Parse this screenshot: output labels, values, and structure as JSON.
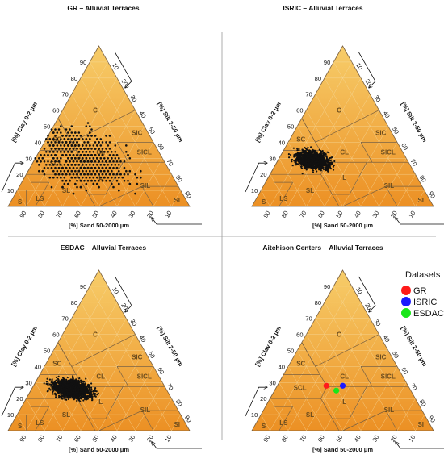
{
  "chart_data": [
    {
      "type": "scatter",
      "title": "GR – Alluvial Terraces",
      "axis_labels": {
        "clay": "[%] Clay 0-2 μm",
        "silt": "[%] Silt 2-50 μm",
        "sand": "[%] Sand 50-2000 μm"
      },
      "class_labels": [
        "C",
        "SC",
        "SIC",
        "SICL",
        "CL",
        "SCL",
        "L",
        "SL",
        "SIL",
        "LS",
        "S",
        "SI"
      ],
      "tick_labels": [
        "10",
        "20",
        "30",
        "40",
        "50",
        "60",
        "70",
        "80",
        "90"
      ],
      "points": {
        "cloud": {
          "sand_center": 46,
          "clay_center": 30,
          "sand_spread": 16,
          "clay_spread": 12,
          "n": 900,
          "style": "dispersed"
        }
      },
      "series": []
    },
    {
      "type": "scatter",
      "title": "ISRIC – Alluvial Terraces",
      "axis_labels": {
        "clay": "[%] Clay 0-2 μm",
        "silt": "[%] Silt 2-50 μm",
        "sand": "[%] Sand 50-2000 μm"
      },
      "class_labels": [
        "C",
        "SC",
        "SIC",
        "SICL",
        "CL",
        "SCL",
        "L",
        "SL",
        "SIL",
        "LS",
        "S",
        "SI"
      ],
      "tick_labels": [
        "10",
        "20",
        "30",
        "40",
        "50",
        "60",
        "70",
        "80",
        "90"
      ],
      "points": {
        "cloud": {
          "sand_center": 52,
          "clay_center": 29,
          "sand_spread": 6,
          "clay_spread": 4,
          "n": 1400,
          "style": "dense"
        }
      },
      "series": []
    },
    {
      "type": "scatter",
      "title": "ESDAC – Alluvial Terraces",
      "axis_labels": {
        "clay": "[%] Clay 0-2 μm",
        "silt": "[%] Silt 2-50 μm",
        "sand": "[%] Sand 50-2000 μm"
      },
      "class_labels": [
        "C",
        "SC",
        "SIC",
        "SICL",
        "CL",
        "SCL",
        "L",
        "SL",
        "SIL",
        "LS",
        "S",
        "SI"
      ],
      "tick_labels": [
        "10",
        "20",
        "30",
        "40",
        "50",
        "60",
        "70",
        "80",
        "90"
      ],
      "points": {
        "cloud": {
          "sand_center": 52,
          "clay_center": 26,
          "sand_spread": 7,
          "clay_spread": 4,
          "n": 1600,
          "style": "dense"
        }
      },
      "series": []
    },
    {
      "type": "scatter",
      "title": "Aitchison Centers – Alluvial Terraces",
      "axis_labels": {
        "clay": "[%] Clay 0-2 μm",
        "silt": "[%] Silt 2-50 μm",
        "sand": "[%] Sand 50-2000 μm"
      },
      "class_labels": [
        "C",
        "SC",
        "SIC",
        "SICL",
        "CL",
        "SCL",
        "L",
        "SL",
        "SIL",
        "LS",
        "S",
        "SI"
      ],
      "tick_labels": [
        "10",
        "20",
        "30",
        "40",
        "50",
        "60",
        "70",
        "80",
        "90"
      ],
      "legend": {
        "title": "Datasets",
        "placement": "top-right"
      },
      "series": [
        {
          "name": "GR",
          "color": "#ff1a1a",
          "sand": 45,
          "clay": 28
        },
        {
          "name": "ISRIC",
          "color": "#1a1aff",
          "sand": 36,
          "clay": 28
        },
        {
          "name": "ESDAC",
          "color": "#19e619",
          "sand": 41,
          "clay": 25
        }
      ]
    }
  ],
  "colors": {
    "fill_top": "#f7cd6a",
    "fill_bottom": "#ec9024",
    "class_line": "#7a6040",
    "grid": "#f6dfa8",
    "divider": "#999999"
  }
}
